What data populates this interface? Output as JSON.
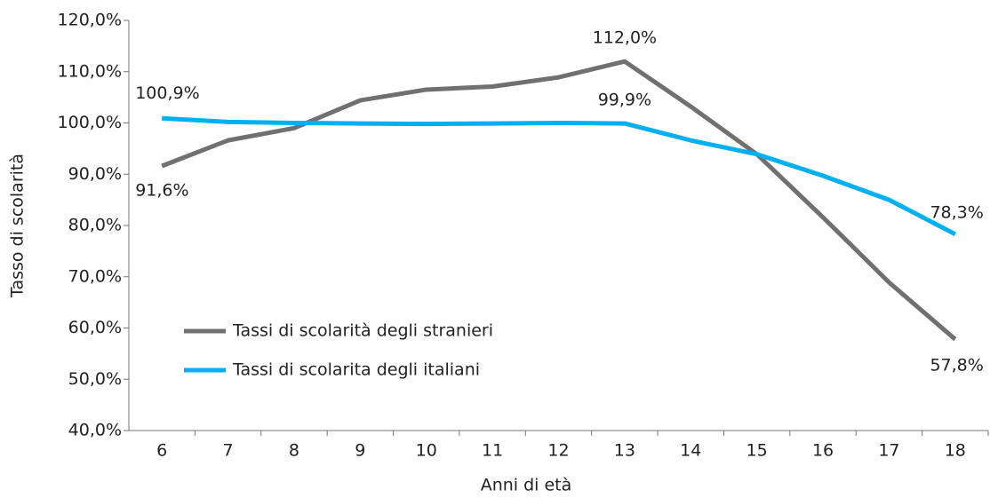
{
  "chart_data": {
    "type": "line",
    "x_label": "Anni di età",
    "y_label": "Tasso di scolarità",
    "categories": [
      6,
      7,
      8,
      9,
      10,
      11,
      12,
      13,
      14,
      15,
      16,
      17,
      18
    ],
    "series": [
      {
        "name": "Tassi di scolarità degli stranieri",
        "color": "#707070",
        "values": [
          91.6,
          96.6,
          99.0,
          104.4,
          106.5,
          107.1,
          108.9,
          112.0,
          103.2,
          93.9,
          81.6,
          68.9,
          57.8
        ],
        "value_labels": [
          "91,6%",
          null,
          null,
          null,
          null,
          null,
          null,
          "112,0%",
          null,
          null,
          null,
          null,
          "57,8%"
        ]
      },
      {
        "name": "Tassi di scolarita degli italiani",
        "color": "#00b0f0",
        "values": [
          100.9,
          100.2,
          100.0,
          99.9,
          99.8,
          99.9,
          100.0,
          99.9,
          96.6,
          93.9,
          89.7,
          85.0,
          78.3
        ],
        "value_labels": [
          "100,9%",
          null,
          null,
          null,
          null,
          null,
          null,
          "99,9%",
          null,
          null,
          null,
          null,
          "78,3%"
        ]
      }
    ],
    "ylim": [
      40,
      120
    ],
    "yticks": [
      {
        "value": 40,
        "label": "40,0%"
      },
      {
        "value": 50,
        "label": "50,0%"
      },
      {
        "value": 60,
        "label": "60,0%"
      },
      {
        "value": 70,
        "label": "70,0%"
      },
      {
        "value": 80,
        "label": "80,0%"
      },
      {
        "value": 90,
        "label": "90,0%"
      },
      {
        "value": 100,
        "label": "100,0%"
      },
      {
        "value": 110,
        "label": "110,0%"
      },
      {
        "value": 120,
        "label": "120,0%"
      }
    ],
    "grid": false,
    "legend": "left"
  }
}
